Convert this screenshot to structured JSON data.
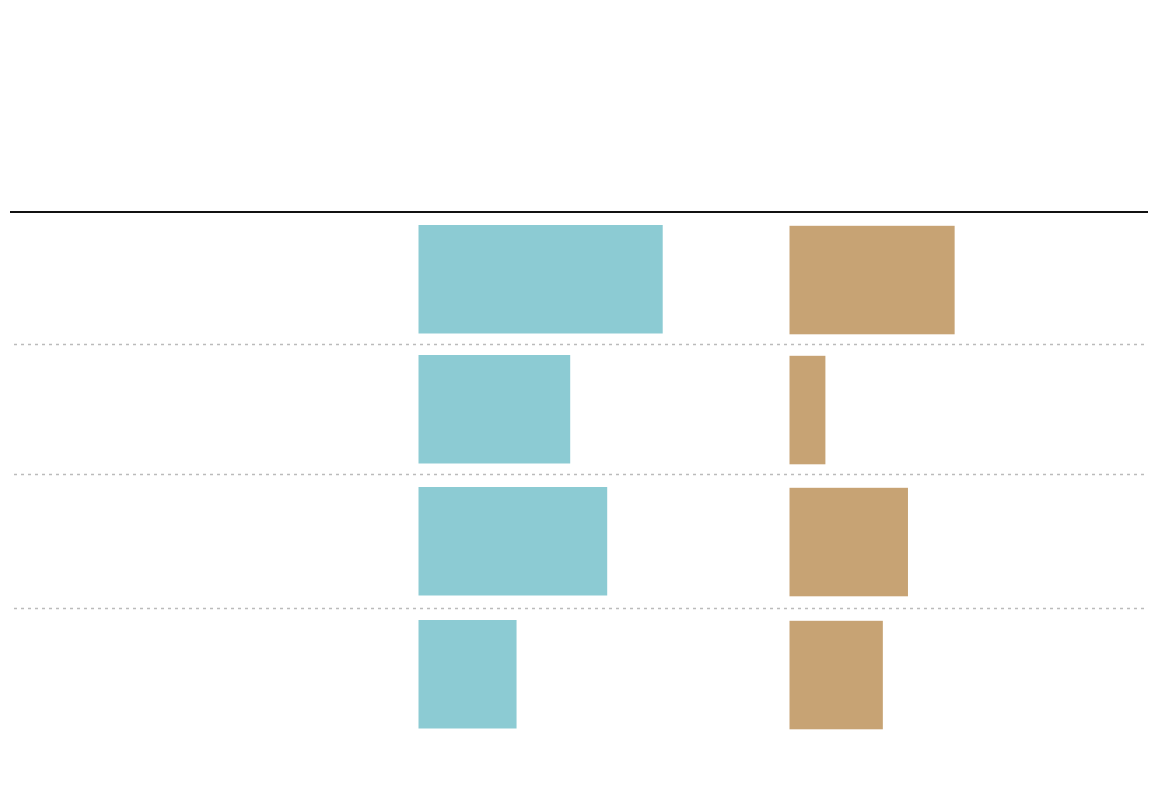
{
  "chart_data": {
    "type": "bar",
    "categories": [
      null,
      null,
      null,
      null
    ],
    "series": [
      {
        "color": "#8ccbd3",
        "values": [
          66,
          41,
          51,
          26.5
        ]
      },
      {
        "color": "#c7a374",
        "values": [
          46,
          10,
          33,
          26
        ]
      }
    ]
  }
}
